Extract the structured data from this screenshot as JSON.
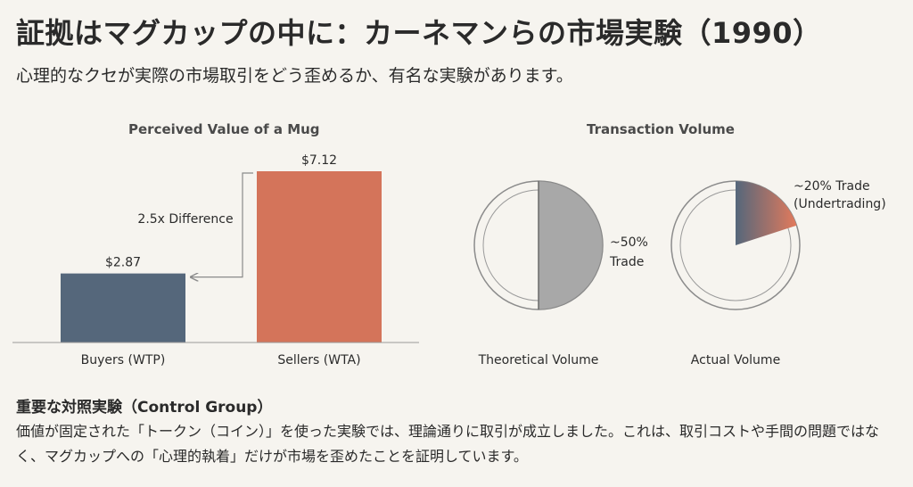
{
  "header": {
    "title": "証拠はマグカップの中に：カーネマンらの市場実験（1990）",
    "subtitle": "心理的なクセが実際の市場取引をどう歪めるか、有名な実験があります。"
  },
  "bar_panel": {
    "title": "Perceived Value of a Mug",
    "annotation": "2.5x Difference"
  },
  "pie_panel": {
    "title": "Transaction Volume"
  },
  "colors": {
    "buyers": "#55677b",
    "sellers": "#d4745a",
    "gray": "#a8a8a8",
    "gradient_start": "#55677b",
    "gradient_end": "#e27a5c"
  },
  "chart_data": [
    {
      "type": "bar",
      "title": "Perceived Value of a Mug",
      "categories": [
        "Buyers (WTP)",
        "Sellers (WTA)"
      ],
      "values": [
        2.87,
        7.12
      ],
      "value_labels": [
        "$2.87",
        "$7.12"
      ],
      "annotation": "2.5x Difference"
    },
    {
      "type": "pie",
      "title": "Transaction Volume",
      "pies": [
        {
          "label": "Theoretical Volume",
          "fraction": 0.5,
          "annotation": [
            "~50%",
            "Trade"
          ],
          "fill": "gray"
        },
        {
          "label": "Actual Volume",
          "fraction": 0.2,
          "annotation": [
            "~20% Trade",
            "(Undertrading)"
          ],
          "fill": "gradient"
        }
      ]
    }
  ],
  "footer": {
    "heading": "重要な対照実験（Control Group）",
    "body": "価値が固定された「トークン（コイン）」を使った実験では、理論通りに取引が成立しました。これは、取引コストや手間の問題ではなく、マグカップへの「心理的執着」だけが市場を歪めたことを証明しています。"
  }
}
